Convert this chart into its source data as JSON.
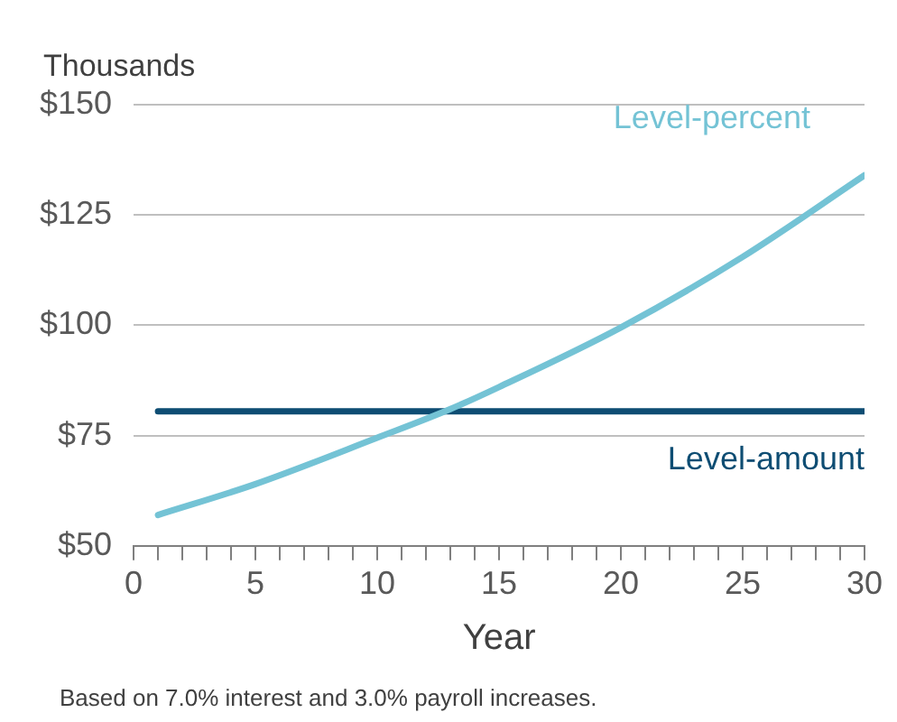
{
  "chart_data": {
    "type": "line",
    "ylabel": "Thousands",
    "xlabel": "Year",
    "annotations": [
      "Based on 7.0% interest and 3.0% payroll increases."
    ],
    "series": [
      {
        "name": "Level-percent",
        "color": "#74c3d5",
        "x": [
          1,
          5,
          10,
          13,
          15,
          20,
          25,
          30
        ],
        "values": [
          57,
          64,
          74.5,
          81,
          86,
          99.5,
          115.5,
          134
        ]
      },
      {
        "name": "Level-amount",
        "color": "#0e4d73",
        "x": [
          1,
          30
        ],
        "values": [
          80.5,
          80.5
        ]
      }
    ],
    "xlim": [
      0,
      30
    ],
    "xticks": [
      0,
      {
        "value": 1,
        "label": null
      },
      {
        "value": 2,
        "label": null
      },
      {
        "value": 3,
        "label": null
      },
      {
        "value": 4,
        "label": null
      },
      5,
      {
        "value": 6,
        "label": null
      },
      {
        "value": 7,
        "label": null
      },
      {
        "value": 8,
        "label": null
      },
      {
        "value": 9,
        "label": null
      },
      10,
      {
        "value": 11,
        "label": null
      },
      {
        "value": 12,
        "label": null
      },
      {
        "value": 13,
        "label": null
      },
      {
        "value": 14,
        "label": null
      },
      15,
      {
        "value": 16,
        "label": null
      },
      {
        "value": 17,
        "label": null
      },
      {
        "value": 18,
        "label": null
      },
      {
        "value": 19,
        "label": null
      },
      20,
      {
        "value": 21,
        "label": null
      },
      {
        "value": 22,
        "label": null
      },
      {
        "value": 23,
        "label": null
      },
      {
        "value": 24,
        "label": null
      },
      25,
      {
        "value": 26,
        "label": null
      },
      {
        "value": 27,
        "label": null
      },
      {
        "value": 28,
        "label": null
      },
      {
        "value": 29,
        "label": null
      },
      30
    ],
    "ylim": [
      50,
      150
    ],
    "yticks": [
      {
        "value": 50,
        "label": "$50"
      },
      {
        "value": 75,
        "label": "$75"
      },
      {
        "value": 100,
        "label": "$100"
      },
      {
        "value": 125,
        "label": "$125"
      },
      {
        "value": 150,
        "label": "$150"
      }
    ],
    "grid": "y",
    "legend": false,
    "marker": "none",
    "line_style": "solid"
  }
}
